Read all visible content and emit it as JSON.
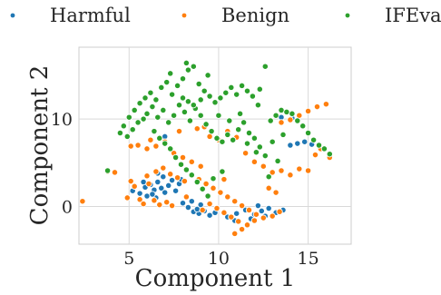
{
  "chart_data": {
    "type": "scatter",
    "xlabel": "Component 1",
    "ylabel": "Component 2",
    "xlim": [
      2.2,
      17.4
    ],
    "ylim": [
      -4.3,
      18.2
    ],
    "xticks": [
      5,
      10,
      15
    ],
    "yticks": [
      0,
      10
    ],
    "grid": true,
    "legend_position": "top",
    "series": [
      {
        "name": "Harmful",
        "color": "#1f77b4",
        "points": [
          [
            5.2,
            1.8
          ],
          [
            5.6,
            1.5
          ],
          [
            5.9,
            2.2
          ],
          [
            6.2,
            2.5
          ],
          [
            6.4,
            1.9
          ],
          [
            6.6,
            2.8
          ],
          [
            6.8,
            2.1
          ],
          [
            7.0,
            1.6
          ],
          [
            7.2,
            2.4
          ],
          [
            7.4,
            3.0
          ],
          [
            6.0,
            1.2
          ],
          [
            6.5,
            1.0
          ],
          [
            7.6,
            1.8
          ],
          [
            7.8,
            2.6
          ],
          [
            6.9,
            3.4
          ],
          [
            5.8,
            2.8
          ],
          [
            8.0,
            0.4
          ],
          [
            8.3,
            -0.1
          ],
          [
            8.6,
            -0.6
          ],
          [
            8.9,
            -0.8
          ],
          [
            9.2,
            -0.5
          ],
          [
            9.5,
            -1.0
          ],
          [
            8.8,
            -0.3
          ],
          [
            9.0,
            0.2
          ],
          [
            9.8,
            -0.7
          ],
          [
            8.5,
            0.6
          ],
          [
            10.5,
            -1.2
          ],
          [
            11.0,
            -0.8
          ],
          [
            11.5,
            -0.4
          ],
          [
            12.0,
            -0.9
          ],
          [
            12.4,
            -0.5
          ],
          [
            12.8,
            -0.2
          ],
          [
            13.2,
            -0.7
          ],
          [
            13.6,
            -0.4
          ],
          [
            11.8,
            -1.4
          ],
          [
            12.2,
            0.1
          ],
          [
            14.0,
            7.0
          ],
          [
            14.4,
            7.2
          ],
          [
            14.8,
            7.4
          ],
          [
            15.2,
            7.1
          ],
          [
            13.5,
            10.2
          ],
          [
            14.1,
            10.1
          ],
          [
            7.0,
            8.0
          ],
          [
            6.6,
            3.8
          ],
          [
            7.9,
            3.1
          ],
          [
            6.3,
            1.4
          ],
          [
            12.6,
            -1.1
          ],
          [
            10.9,
            -1.6
          ]
        ]
      },
      {
        "name": "Benign",
        "color": "#ff7f0e",
        "points": [
          [
            2.4,
            0.6
          ],
          [
            3.8,
            4.0
          ],
          [
            4.2,
            3.9
          ],
          [
            4.9,
            1.0
          ],
          [
            5.1,
            2.9
          ],
          [
            5.3,
            2.3
          ],
          [
            5.6,
            0.8
          ],
          [
            5.8,
            0.3
          ],
          [
            6.1,
            2.6
          ],
          [
            6.4,
            0.7
          ],
          [
            6.7,
            0.2
          ],
          [
            7.1,
            0.5
          ],
          [
            7.4,
            0.1
          ],
          [
            6.0,
            3.5
          ],
          [
            6.5,
            4.0
          ],
          [
            6.9,
            4.4
          ],
          [
            7.3,
            3.7
          ],
          [
            7.7,
            3.3
          ],
          [
            8.1,
            2.9
          ],
          [
            8.5,
            3.6
          ],
          [
            8.9,
            3.1
          ],
          [
            9.3,
            2.6
          ],
          [
            9.7,
            2.1
          ],
          [
            10.1,
            1.6
          ],
          [
            10.5,
            1.1
          ],
          [
            10.9,
            0.6
          ],
          [
            11.3,
            0.1
          ],
          [
            11.7,
            -0.4
          ],
          [
            12.1,
            -0.9
          ],
          [
            12.5,
            -1.3
          ],
          [
            13.0,
            -1.1
          ],
          [
            13.4,
            -0.6
          ],
          [
            9.1,
            -0.4
          ],
          [
            9.5,
            0.3
          ],
          [
            9.9,
            -0.2
          ],
          [
            10.3,
            -0.7
          ],
          [
            10.7,
            -1.2
          ],
          [
            11.1,
            -1.7
          ],
          [
            11.3,
            -2.6
          ],
          [
            10.9,
            -3.1
          ],
          [
            11.6,
            -2.1
          ],
          [
            12.0,
            -1.6
          ],
          [
            5.5,
            7.0
          ],
          [
            6.0,
            6.6
          ],
          [
            6.5,
            6.9
          ],
          [
            7.0,
            7.4
          ],
          [
            7.5,
            6.1
          ],
          [
            8.0,
            5.6
          ],
          [
            8.5,
            5.1
          ],
          [
            9.0,
            4.6
          ],
          [
            9.5,
            8.0
          ],
          [
            10.0,
            7.6
          ],
          [
            10.5,
            8.6
          ],
          [
            11.0,
            7.9
          ],
          [
            11.5,
            6.1
          ],
          [
            12.0,
            5.1
          ],
          [
            12.5,
            4.6
          ],
          [
            13.0,
            3.9
          ],
          [
            13.5,
            4.1
          ],
          [
            14.0,
            3.6
          ],
          [
            14.5,
            4.3
          ],
          [
            15.0,
            4.1
          ],
          [
            13.5,
            9.6
          ],
          [
            14.0,
            9.9
          ],
          [
            14.5,
            10.4
          ],
          [
            15.0,
            10.9
          ],
          [
            15.5,
            11.4
          ],
          [
            16.0,
            11.7
          ],
          [
            15.7,
            6.6
          ],
          [
            16.2,
            5.6
          ],
          [
            15.4,
            5.9
          ],
          [
            8.8,
            8.9
          ],
          [
            9.2,
            9.1
          ],
          [
            7.8,
            8.6
          ],
          [
            6.2,
            7.6
          ],
          [
            5.1,
            6.9
          ],
          [
            12.8,
            2.1
          ],
          [
            13.2,
            1.6
          ],
          [
            10.3,
            3.1
          ],
          [
            8.2,
            1.1
          ]
        ]
      },
      {
        "name": "IFEval",
        "color": "#2ca02c",
        "points": [
          [
            4.7,
            9.2
          ],
          [
            5.0,
            10.2
          ],
          [
            5.3,
            11.0
          ],
          [
            5.6,
            11.8
          ],
          [
            5.9,
            12.4
          ],
          [
            6.2,
            13.0
          ],
          [
            6.5,
            12.2
          ],
          [
            6.8,
            13.6
          ],
          [
            7.1,
            14.2
          ],
          [
            7.4,
            12.8
          ],
          [
            7.7,
            13.8
          ],
          [
            8.0,
            14.6
          ],
          [
            8.3,
            15.6
          ],
          [
            8.6,
            16.0
          ],
          [
            8.9,
            14.0
          ],
          [
            9.2,
            13.2
          ],
          [
            9.5,
            12.6
          ],
          [
            9.8,
            11.9
          ],
          [
            10.1,
            12.4
          ],
          [
            10.4,
            13.0
          ],
          [
            10.7,
            13.6
          ],
          [
            11.0,
            12.8
          ],
          [
            11.3,
            13.8
          ],
          [
            11.6,
            13.2
          ],
          [
            11.9,
            12.6
          ],
          [
            12.2,
            11.6
          ],
          [
            12.6,
            16.0
          ],
          [
            12.3,
            13.4
          ],
          [
            6.0,
            10.6
          ],
          [
            6.3,
            11.4
          ],
          [
            6.6,
            10.2
          ],
          [
            6.9,
            11.0
          ],
          [
            7.2,
            9.6
          ],
          [
            7.5,
            10.4
          ],
          [
            7.8,
            11.6
          ],
          [
            8.1,
            10.8
          ],
          [
            8.4,
            9.8
          ],
          [
            8.7,
            11.2
          ],
          [
            9.0,
            10.4
          ],
          [
            9.3,
            9.4
          ],
          [
            9.6,
            8.6
          ],
          [
            9.9,
            7.8
          ],
          [
            10.2,
            7.4
          ],
          [
            10.5,
            8.2
          ],
          [
            10.8,
            7.6
          ],
          [
            11.1,
            8.8
          ],
          [
            11.4,
            9.6
          ],
          [
            11.7,
            8.4
          ],
          [
            12.0,
            7.8
          ],
          [
            12.3,
            6.8
          ],
          [
            12.6,
            5.8
          ],
          [
            12.9,
            9.8
          ],
          [
            13.2,
            10.4
          ],
          [
            13.5,
            11.0
          ],
          [
            13.8,
            10.8
          ],
          [
            14.1,
            10.6
          ],
          [
            14.4,
            9.8
          ],
          [
            14.7,
            9.2
          ],
          [
            15.0,
            8.4
          ],
          [
            15.3,
            7.6
          ],
          [
            15.6,
            7.0
          ],
          [
            15.9,
            6.6
          ],
          [
            16.2,
            6.0
          ],
          [
            6.4,
            8.6
          ],
          [
            6.7,
            7.8
          ],
          [
            7.0,
            7.2
          ],
          [
            7.3,
            6.6
          ],
          [
            7.6,
            5.6
          ],
          [
            7.9,
            4.8
          ],
          [
            8.2,
            4.2
          ],
          [
            8.5,
            3.6
          ],
          [
            8.8,
            2.8
          ],
          [
            9.1,
            2.0
          ],
          [
            9.4,
            1.2
          ],
          [
            4.5,
            8.4
          ],
          [
            4.9,
            8.0
          ],
          [
            5.2,
            8.8
          ],
          [
            5.5,
            9.6
          ],
          [
            5.8,
            10.0
          ],
          [
            8.0,
            12.4
          ],
          [
            8.3,
            12.0
          ],
          [
            8.6,
            11.6
          ],
          [
            9.0,
            12.2
          ],
          [
            10.0,
            10.4
          ],
          [
            10.6,
            9.8
          ],
          [
            11.2,
            10.6
          ],
          [
            11.6,
            7.2
          ],
          [
            12.1,
            6.2
          ],
          [
            13.0,
            7.4
          ],
          [
            13.6,
            8.2
          ],
          [
            3.8,
            4.1
          ],
          [
            12.8,
            3.4
          ],
          [
            13.3,
            5.2
          ],
          [
            10.2,
            4.0
          ],
          [
            9.7,
            3.2
          ],
          [
            7.3,
            15.2
          ],
          [
            9.4,
            15.0
          ],
          [
            8.2,
            16.4
          ]
        ]
      }
    ]
  }
}
